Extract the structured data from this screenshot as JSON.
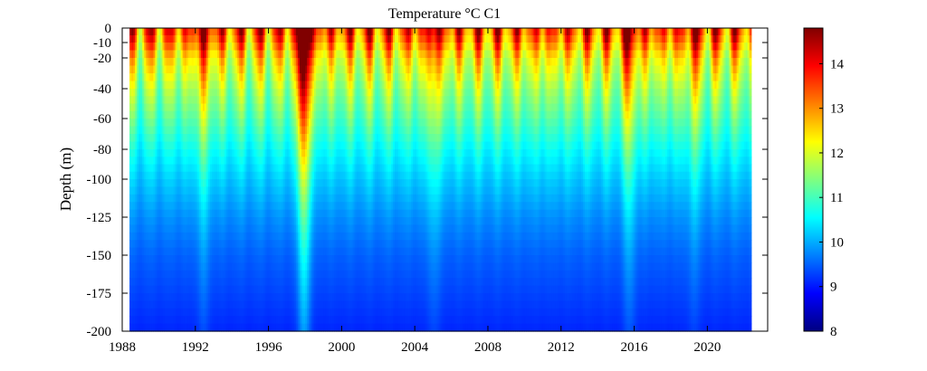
{
  "chart_data": {
    "type": "heatmap",
    "title": "Temperature °C C1",
    "ylabel": "Depth (m)",
    "xlabel": "",
    "x_ticks": [
      "1988",
      "1992",
      "1996",
      "2000",
      "2004",
      "2008",
      "2012",
      "2016",
      "2020"
    ],
    "y_ticks": [
      "0",
      "-10",
      "-20",
      "-40",
      "-60",
      "-80",
      "-100",
      "-125",
      "-150",
      "-175",
      "-200"
    ],
    "colorbar_ticks": [
      "8",
      "9",
      "10",
      "11",
      "12",
      "13",
      "14"
    ],
    "x_range": [
      1988,
      2023.3
    ],
    "data_x_range": [
      1988.4,
      2022.4
    ],
    "depth_range": [
      0,
      -200
    ],
    "color_range": [
      8,
      14.8
    ],
    "colormap": "jet",
    "depth_levels": [
      0,
      -10,
      -20,
      -40,
      -60,
      -80,
      -100,
      -125,
      -150,
      -175,
      -200
    ],
    "profile_temperature": [
      13.6,
      13.0,
      12.3,
      11.6,
      11.1,
      10.6,
      10.2,
      9.8,
      9.5,
      9.3,
      9.1
    ],
    "events": [
      {
        "year": 1997.9,
        "amplitude": 4.2
      },
      {
        "year": 1992.4,
        "amplitude": 1.3
      },
      {
        "year": 2005.0,
        "amplitude": 1.1
      },
      {
        "year": 2015.7,
        "amplitude": 1.6
      },
      {
        "year": 2019.2,
        "amplitude": 0.9
      }
    ]
  },
  "colorbar": {
    "label": ""
  }
}
